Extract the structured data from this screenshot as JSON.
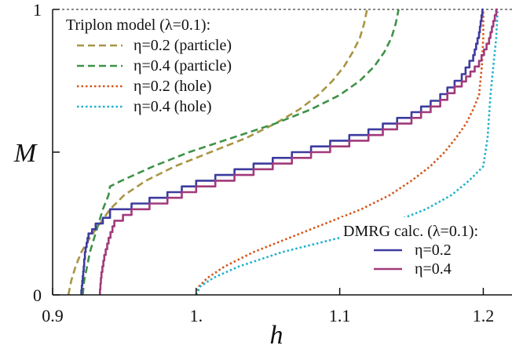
{
  "chart_data": {
    "type": "line",
    "title": "",
    "xlabel": "h",
    "ylabel": "M",
    "xlim": [
      0.9,
      1.22
    ],
    "ylim": [
      0,
      1
    ],
    "grid": false,
    "x_ticks": [
      {
        "value": 0.9,
        "label": "0.9"
      },
      {
        "value": 1.0,
        "label": "1."
      },
      {
        "value": 1.1,
        "label": "1.1"
      },
      {
        "value": 1.2,
        "label": "1.2"
      }
    ],
    "y_ticks": [
      {
        "value": 0,
        "label": "0"
      },
      {
        "value": 0.5,
        "label": ""
      },
      {
        "value": 1,
        "label": "1"
      }
    ],
    "reference_line": {
      "y": 1,
      "style": "dotted"
    },
    "legends": [
      {
        "title": "Triplon model (λ=0.1):",
        "placement": "top-left",
        "entries": [
          {
            "label": "η=0.2 (particle)",
            "series": 0
          },
          {
            "label": "η=0.4 (particle)",
            "series": 1
          },
          {
            "label": "η=0.2 (hole)",
            "series": 2
          },
          {
            "label": "η=0.4 (hole)",
            "series": 3
          }
        ]
      },
      {
        "title": "DMRG calc. (λ=0.1):",
        "placement": "bottom-right",
        "entries": [
          {
            "label": "η=0.2",
            "series": 4
          },
          {
            "label": "η=0.4",
            "series": 5
          }
        ]
      }
    ],
    "series": [
      {
        "name": "η=0.2 (particle)",
        "color": "#a89544",
        "dash": "dashed",
        "points": [
          [
            0.911,
            0.0
          ],
          [
            0.913,
            0.05
          ],
          [
            0.916,
            0.1
          ],
          [
            0.92,
            0.15
          ],
          [
            0.926,
            0.2
          ],
          [
            0.933,
            0.25
          ],
          [
            0.94,
            0.3
          ],
          [
            0.95,
            0.35
          ],
          [
            0.965,
            0.4
          ],
          [
            0.985,
            0.45
          ],
          [
            1.01,
            0.5
          ],
          [
            1.035,
            0.55
          ],
          [
            1.055,
            0.6
          ],
          [
            1.072,
            0.65
          ],
          [
            1.085,
            0.7
          ],
          [
            1.095,
            0.75
          ],
          [
            1.103,
            0.8
          ],
          [
            1.109,
            0.85
          ],
          [
            1.114,
            0.9
          ],
          [
            1.117,
            0.95
          ],
          [
            1.119,
            1.0
          ]
        ]
      },
      {
        "name": "η=0.4 (particle)",
        "color": "#3e9248",
        "dash": "dashed",
        "points": [
          [
            0.921,
            0.0
          ],
          [
            0.922,
            0.05
          ],
          [
            0.924,
            0.1
          ],
          [
            0.926,
            0.15
          ],
          [
            0.929,
            0.2
          ],
          [
            0.932,
            0.25
          ],
          [
            0.935,
            0.3
          ],
          [
            0.939,
            0.35
          ],
          [
            0.94,
            0.38
          ],
          [
            0.948,
            0.4
          ],
          [
            0.97,
            0.45
          ],
          [
            0.995,
            0.5
          ],
          [
            1.025,
            0.55
          ],
          [
            1.055,
            0.6
          ],
          [
            1.08,
            0.65
          ],
          [
            1.1,
            0.7
          ],
          [
            1.114,
            0.75
          ],
          [
            1.124,
            0.8
          ],
          [
            1.131,
            0.85
          ],
          [
            1.136,
            0.9
          ],
          [
            1.139,
            0.95
          ],
          [
            1.141,
            1.0
          ]
        ]
      },
      {
        "name": "η=0.2 (hole)",
        "color": "#d2571c",
        "dash": "dotted",
        "points": [
          [
            1.0,
            0.0
          ],
          [
            1.002,
            0.03
          ],
          [
            1.008,
            0.06
          ],
          [
            1.02,
            0.1
          ],
          [
            1.04,
            0.15
          ],
          [
            1.065,
            0.2
          ],
          [
            1.09,
            0.25
          ],
          [
            1.115,
            0.3
          ],
          [
            1.135,
            0.35
          ],
          [
            1.15,
            0.4
          ],
          [
            1.163,
            0.45
          ],
          [
            1.173,
            0.5
          ],
          [
            1.181,
            0.55
          ],
          [
            1.188,
            0.6
          ],
          [
            1.193,
            0.65
          ],
          [
            1.197,
            0.7
          ],
          [
            1.199,
            0.8
          ],
          [
            1.2,
            0.9
          ],
          [
            1.2,
            1.0
          ]
        ]
      },
      {
        "name": "η=0.4 (hole)",
        "color": "#1fb1cc",
        "dash": "dotted",
        "points": [
          [
            1.0,
            0.0
          ],
          [
            1.003,
            0.03
          ],
          [
            1.012,
            0.06
          ],
          [
            1.03,
            0.1
          ],
          [
            1.06,
            0.15
          ],
          [
            1.1,
            0.2
          ],
          [
            1.135,
            0.25
          ],
          [
            1.16,
            0.3
          ],
          [
            1.178,
            0.35
          ],
          [
            1.19,
            0.4
          ],
          [
            1.2,
            0.45
          ],
          [
            1.203,
            0.55
          ],
          [
            1.205,
            0.7
          ],
          [
            1.207,
            0.8
          ],
          [
            1.209,
            0.9
          ],
          [
            1.21,
            1.0
          ]
        ]
      },
      {
        "name": "η=0.2",
        "color": "#3d3b9e",
        "dash": "solid",
        "step": true,
        "points": [
          [
            0.92,
            0.0
          ],
          [
            0.921,
            0.05
          ],
          [
            0.922,
            0.1
          ],
          [
            0.923,
            0.15
          ],
          [
            0.925,
            0.2
          ],
          [
            0.93,
            0.23
          ],
          [
            0.94,
            0.27
          ],
          [
            0.955,
            0.3
          ],
          [
            0.98,
            0.34
          ],
          [
            1.0,
            0.38
          ],
          [
            1.04,
            0.44
          ],
          [
            1.08,
            0.5
          ],
          [
            1.12,
            0.56
          ],
          [
            1.15,
            0.62
          ],
          [
            1.17,
            0.68
          ],
          [
            1.185,
            0.75
          ],
          [
            1.193,
            0.82
          ],
          [
            1.197,
            0.9
          ],
          [
            1.2,
            1.0
          ]
        ]
      },
      {
        "name": "η=0.4",
        "color": "#a13a7a",
        "dash": "solid",
        "step": true,
        "points": [
          [
            0.933,
            0.0
          ],
          [
            0.934,
            0.06
          ],
          [
            0.936,
            0.12
          ],
          [
            0.939,
            0.18
          ],
          [
            0.943,
            0.24
          ],
          [
            0.955,
            0.28
          ],
          [
            0.98,
            0.32
          ],
          [
            1.0,
            0.36
          ],
          [
            1.04,
            0.42
          ],
          [
            1.08,
            0.48
          ],
          [
            1.12,
            0.54
          ],
          [
            1.15,
            0.6
          ],
          [
            1.17,
            0.66
          ],
          [
            1.185,
            0.73
          ],
          [
            1.197,
            0.8
          ],
          [
            1.204,
            0.88
          ],
          [
            1.21,
            1.0
          ]
        ]
      }
    ]
  }
}
